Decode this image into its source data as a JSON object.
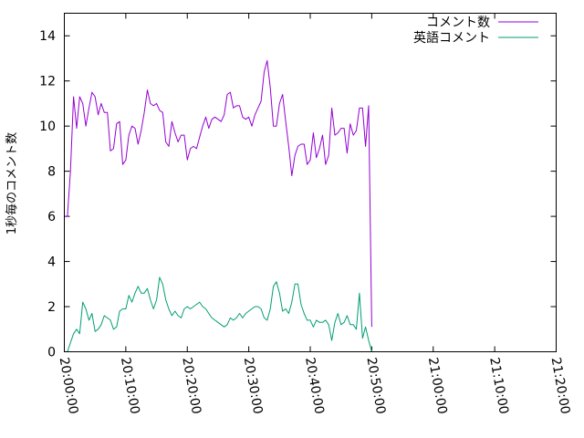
{
  "chart_data": {
    "type": "line",
    "title": "",
    "xlabel": "",
    "ylabel": "1秒毎のコメント数",
    "x_ticks": [
      "20:00:00",
      "20:10:00",
      "20:20:00",
      "20:30:00",
      "20:40:00",
      "20:50:00",
      "21:00:00",
      "21:10:00",
      "21:20:00"
    ],
    "y_ticks": [
      "0",
      "2",
      "4",
      "6",
      "8",
      "10",
      "12",
      "14"
    ],
    "xlim": [
      "20:00:00",
      "21:20:00"
    ],
    "ylim": [
      0,
      15
    ],
    "grid": false,
    "legend_position": "top-right",
    "series": [
      {
        "name": "コメント数",
        "color": "#9400d3",
        "points": [
          [
            "20:00:00",
            6.0
          ],
          [
            "20:00:30",
            6.0
          ],
          [
            "20:01:00",
            8.0
          ],
          [
            "20:01:30",
            11.3
          ],
          [
            "20:02:00",
            9.9
          ],
          [
            "20:02:30",
            11.3
          ],
          [
            "20:03:00",
            11.0
          ],
          [
            "20:03:30",
            10.0
          ],
          [
            "20:04:00",
            10.8
          ],
          [
            "20:04:30",
            11.5
          ],
          [
            "20:05:00",
            11.3
          ],
          [
            "20:05:30",
            10.5
          ],
          [
            "20:06:00",
            11.0
          ],
          [
            "20:06:30",
            10.6
          ],
          [
            "20:07:00",
            10.6
          ],
          [
            "20:07:30",
            8.9
          ],
          [
            "20:08:00",
            9.0
          ],
          [
            "20:08:30",
            10.1
          ],
          [
            "20:09:00",
            10.2
          ],
          [
            "20:09:30",
            8.3
          ],
          [
            "20:10:00",
            8.5
          ],
          [
            "20:10:30",
            9.6
          ],
          [
            "20:11:00",
            10.0
          ],
          [
            "20:11:30",
            9.9
          ],
          [
            "20:12:00",
            9.2
          ],
          [
            "20:12:30",
            9.8
          ],
          [
            "20:13:00",
            10.6
          ],
          [
            "20:13:30",
            11.6
          ],
          [
            "20:14:00",
            11.0
          ],
          [
            "20:14:30",
            10.9
          ],
          [
            "20:15:00",
            11.0
          ],
          [
            "20:15:30",
            10.7
          ],
          [
            "20:16:00",
            10.6
          ],
          [
            "20:16:30",
            9.3
          ],
          [
            "20:17:00",
            9.1
          ],
          [
            "20:17:30",
            10.2
          ],
          [
            "20:18:00",
            9.7
          ],
          [
            "20:18:30",
            9.3
          ],
          [
            "20:19:00",
            9.6
          ],
          [
            "20:19:30",
            9.6
          ],
          [
            "20:20:00",
            8.5
          ],
          [
            "20:20:30",
            9.0
          ],
          [
            "20:21:00",
            9.1
          ],
          [
            "20:21:30",
            9.0
          ],
          [
            "20:22:00",
            9.5
          ],
          [
            "20:22:30",
            10.0
          ],
          [
            "20:23:00",
            10.4
          ],
          [
            "20:23:30",
            9.9
          ],
          [
            "20:24:00",
            10.3
          ],
          [
            "20:24:30",
            10.4
          ],
          [
            "20:25:00",
            10.3
          ],
          [
            "20:25:30",
            10.2
          ],
          [
            "20:26:00",
            10.5
          ],
          [
            "20:26:30",
            11.4
          ],
          [
            "20:27:00",
            11.5
          ],
          [
            "20:27:30",
            10.8
          ],
          [
            "20:28:00",
            10.9
          ],
          [
            "20:28:30",
            10.9
          ],
          [
            "20:29:00",
            10.4
          ],
          [
            "20:29:30",
            10.3
          ],
          [
            "20:30:00",
            10.4
          ],
          [
            "20:30:30",
            10.0
          ],
          [
            "20:31:00",
            10.5
          ],
          [
            "20:31:30",
            10.8
          ],
          [
            "20:32:00",
            11.1
          ],
          [
            "20:32:30",
            12.4
          ],
          [
            "20:33:00",
            12.9
          ],
          [
            "20:33:30",
            11.7
          ],
          [
            "20:34:00",
            10.0
          ],
          [
            "20:34:30",
            10.0
          ],
          [
            "20:35:00",
            11.0
          ],
          [
            "20:35:30",
            11.4
          ],
          [
            "20:36:00",
            10.2
          ],
          [
            "20:36:30",
            9.1
          ],
          [
            "20:37:00",
            7.8
          ],
          [
            "20:37:30",
            8.7
          ],
          [
            "20:38:00",
            9.1
          ],
          [
            "20:38:30",
            9.2
          ],
          [
            "20:39:00",
            9.2
          ],
          [
            "20:39:30",
            8.3
          ],
          [
            "20:40:00",
            8.5
          ],
          [
            "20:40:30",
            9.7
          ],
          [
            "20:41:00",
            8.6
          ],
          [
            "20:41:30",
            9.0
          ],
          [
            "20:42:00",
            9.6
          ],
          [
            "20:42:30",
            8.3
          ],
          [
            "20:43:00",
            8.7
          ],
          [
            "20:43:30",
            10.8
          ],
          [
            "20:44:00",
            9.6
          ],
          [
            "20:44:30",
            9.7
          ],
          [
            "20:45:00",
            9.9
          ],
          [
            "20:45:30",
            9.9
          ],
          [
            "20:46:00",
            8.8
          ],
          [
            "20:46:30",
            10.1
          ],
          [
            "20:47:00",
            9.6
          ],
          [
            "20:47:30",
            9.8
          ],
          [
            "20:48:00",
            10.8
          ],
          [
            "20:48:30",
            10.8
          ],
          [
            "20:49:00",
            9.1
          ],
          [
            "20:49:30",
            10.9
          ],
          [
            "20:50:00",
            1.1
          ]
        ]
      },
      {
        "name": "英語コメント",
        "color": "#009e73",
        "points": [
          [
            "20:00:00",
            0.0
          ],
          [
            "20:00:30",
            0.0
          ],
          [
            "20:01:00",
            0.4
          ],
          [
            "20:01:30",
            0.8
          ],
          [
            "20:02:00",
            1.0
          ],
          [
            "20:02:30",
            0.8
          ],
          [
            "20:03:00",
            2.2
          ],
          [
            "20:03:30",
            1.9
          ],
          [
            "20:04:00",
            1.4
          ],
          [
            "20:04:30",
            1.7
          ],
          [
            "20:05:00",
            0.9
          ],
          [
            "20:05:30",
            1.0
          ],
          [
            "20:06:00",
            1.2
          ],
          [
            "20:06:30",
            1.6
          ],
          [
            "20:07:00",
            1.5
          ],
          [
            "20:07:30",
            1.4
          ],
          [
            "20:08:00",
            1.0
          ],
          [
            "20:08:30",
            1.1
          ],
          [
            "20:09:00",
            1.8
          ],
          [
            "20:09:30",
            1.9
          ],
          [
            "20:10:00",
            1.9
          ],
          [
            "20:10:30",
            2.5
          ],
          [
            "20:11:00",
            2.2
          ],
          [
            "20:11:30",
            2.6
          ],
          [
            "20:12:00",
            2.9
          ],
          [
            "20:12:30",
            2.6
          ],
          [
            "20:13:00",
            2.6
          ],
          [
            "20:13:30",
            2.8
          ],
          [
            "20:14:00",
            2.3
          ],
          [
            "20:14:30",
            1.9
          ],
          [
            "20:15:00",
            2.3
          ],
          [
            "20:15:30",
            3.3
          ],
          [
            "20:16:00",
            3.0
          ],
          [
            "20:16:30",
            2.3
          ],
          [
            "20:17:00",
            1.9
          ],
          [
            "20:17:30",
            1.6
          ],
          [
            "20:18:00",
            1.8
          ],
          [
            "20:18:30",
            1.6
          ],
          [
            "20:19:00",
            1.5
          ],
          [
            "20:19:30",
            1.9
          ],
          [
            "20:20:00",
            2.0
          ],
          [
            "20:20:30",
            1.9
          ],
          [
            "20:21:00",
            2.0
          ],
          [
            "20:21:30",
            2.1
          ],
          [
            "20:22:00",
            2.2
          ],
          [
            "20:22:30",
            2.0
          ],
          [
            "20:23:00",
            1.9
          ],
          [
            "20:23:30",
            1.7
          ],
          [
            "20:24:00",
            1.5
          ],
          [
            "20:24:30",
            1.4
          ],
          [
            "20:25:00",
            1.3
          ],
          [
            "20:25:30",
            1.2
          ],
          [
            "20:26:00",
            1.1
          ],
          [
            "20:26:30",
            1.2
          ],
          [
            "20:27:00",
            1.5
          ],
          [
            "20:27:30",
            1.4
          ],
          [
            "20:28:00",
            1.5
          ],
          [
            "20:28:30",
            1.7
          ],
          [
            "20:29:00",
            1.5
          ],
          [
            "20:29:30",
            1.7
          ],
          [
            "20:30:00",
            1.8
          ],
          [
            "20:30:30",
            1.9
          ],
          [
            "20:31:00",
            2.0
          ],
          [
            "20:31:30",
            2.0
          ],
          [
            "20:32:00",
            1.9
          ],
          [
            "20:32:30",
            1.5
          ],
          [
            "20:33:00",
            1.4
          ],
          [
            "20:33:30",
            1.9
          ],
          [
            "20:34:00",
            2.9
          ],
          [
            "20:34:30",
            3.1
          ],
          [
            "20:35:00",
            2.6
          ],
          [
            "20:35:30",
            1.8
          ],
          [
            "20:36:00",
            1.9
          ],
          [
            "20:36:30",
            1.7
          ],
          [
            "20:37:00",
            2.2
          ],
          [
            "20:37:30",
            3.0
          ],
          [
            "20:38:00",
            3.0
          ],
          [
            "20:38:30",
            2.1
          ],
          [
            "20:39:00",
            1.7
          ],
          [
            "20:39:30",
            1.4
          ],
          [
            "20:40:00",
            1.4
          ],
          [
            "20:40:30",
            1.1
          ],
          [
            "20:41:00",
            1.4
          ],
          [
            "20:41:30",
            1.3
          ],
          [
            "20:42:00",
            1.3
          ],
          [
            "20:42:30",
            1.4
          ],
          [
            "20:43:00",
            1.2
          ],
          [
            "20:43:30",
            0.5
          ],
          [
            "20:44:00",
            1.3
          ],
          [
            "20:44:30",
            1.7
          ],
          [
            "20:45:00",
            1.2
          ],
          [
            "20:45:30",
            1.3
          ],
          [
            "20:46:00",
            1.6
          ],
          [
            "20:46:30",
            1.2
          ],
          [
            "20:47:00",
            1.2
          ],
          [
            "20:47:30",
            1.0
          ],
          [
            "20:48:00",
            2.6
          ],
          [
            "20:48:30",
            0.6
          ],
          [
            "20:49:00",
            1.1
          ],
          [
            "20:49:30",
            0.5
          ],
          [
            "20:50:00",
            0.0
          ]
        ]
      }
    ]
  }
}
